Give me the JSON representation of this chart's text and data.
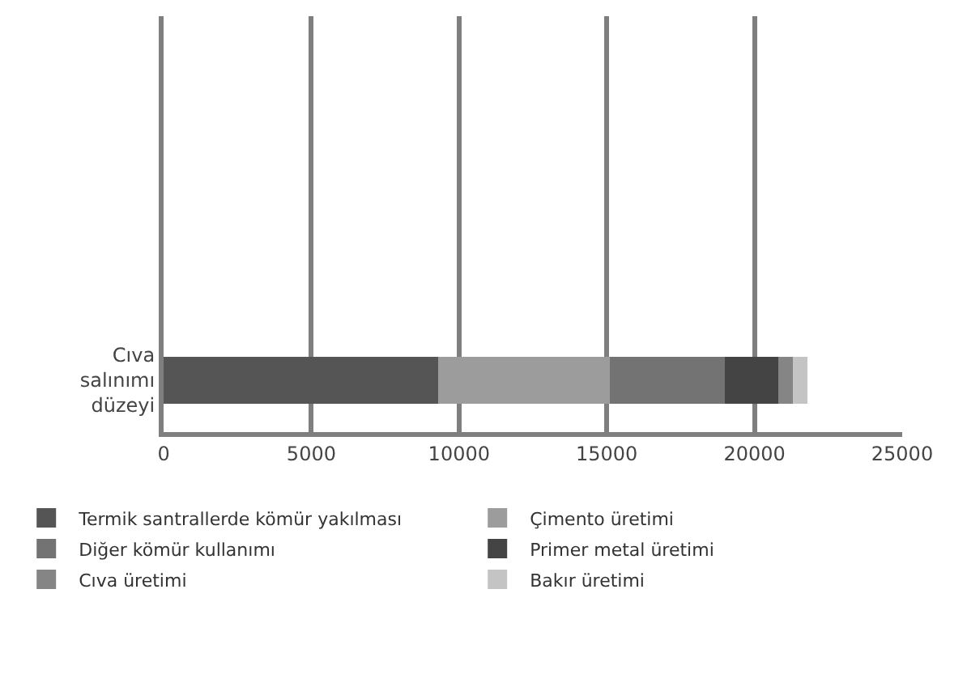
{
  "chart_data": {
    "type": "bar",
    "orientation": "horizontal",
    "stacked": true,
    "categories": [
      "Cıva salınımı düzeyi"
    ],
    "series": [
      {
        "name": "Termik santrallerde kömür yakılması",
        "color": "#555555",
        "values": [
          9300
        ]
      },
      {
        "name": "Çimento üretimi",
        "color": "#9c9c9c",
        "values": [
          5800
        ]
      },
      {
        "name": "Diğer kömür kullanımı",
        "color": "#737373",
        "values": [
          3900
        ]
      },
      {
        "name": "Primer metal üretimi",
        "color": "#444444",
        "values": [
          1800
        ]
      },
      {
        "name": "Cıva üretimi",
        "color": "#858585",
        "values": [
          500
        ]
      },
      {
        "name": "Bakır üretimi",
        "color": "#c4c4c4",
        "values": [
          500
        ]
      }
    ],
    "xlim": [
      0,
      25000
    ],
    "xticks": [
      0,
      5000,
      10000,
      15000,
      20000,
      25000
    ],
    "grid": "x",
    "legend": "bottom"
  }
}
